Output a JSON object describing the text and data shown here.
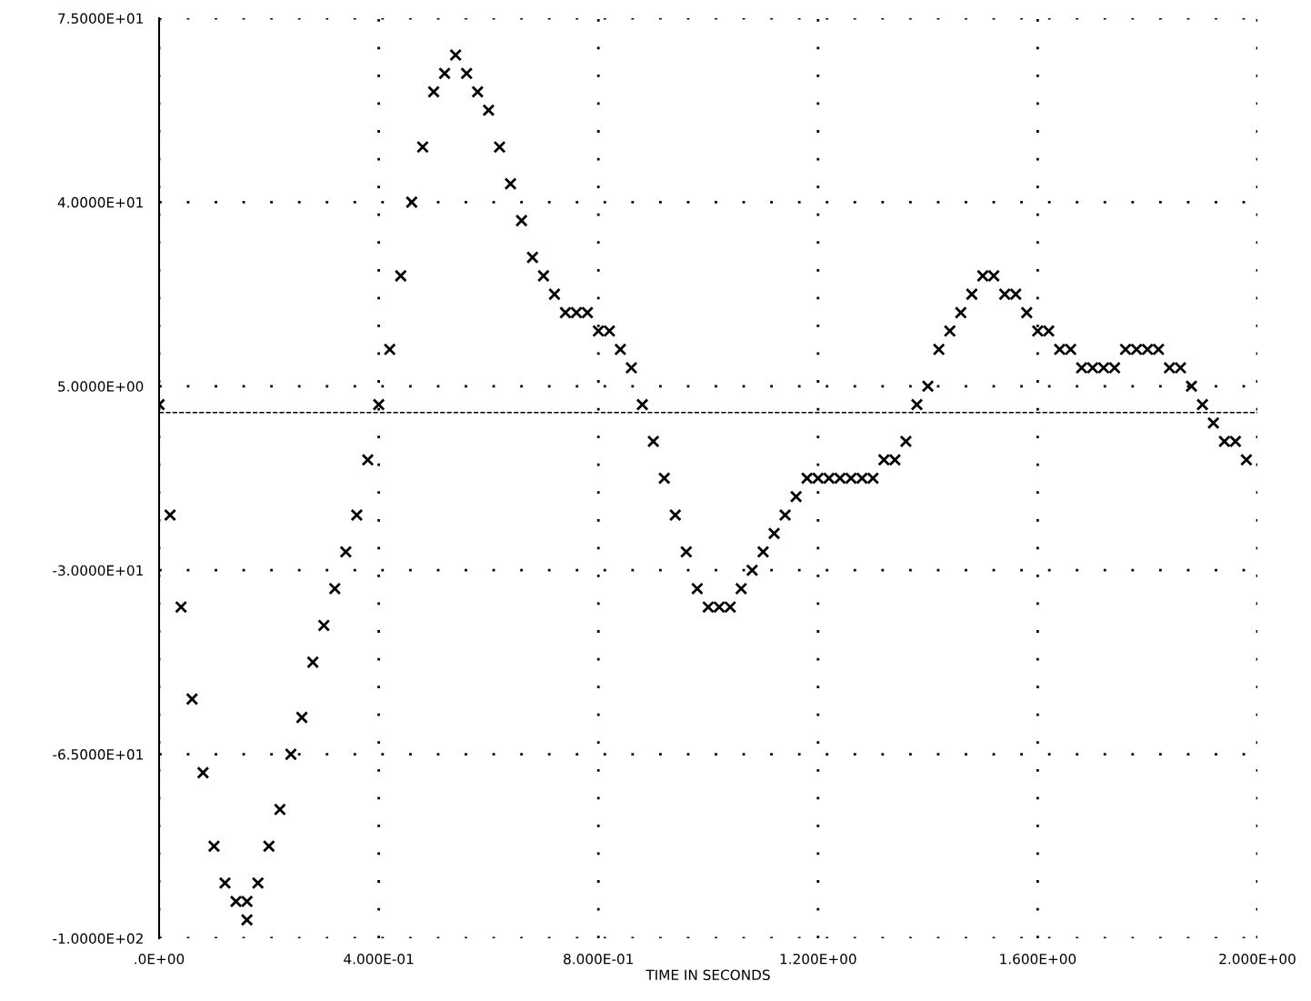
{
  "chart_data": {
    "type": "scatter",
    "xlabel": "TIME IN SECONDS",
    "x": [
      0,
      0.02,
      0.04,
      0.06,
      0.08,
      0.1,
      0.12,
      0.14,
      0.16,
      0.16,
      0.18,
      0.2,
      0.22,
      0.24,
      0.26,
      0.28,
      0.3,
      0.32,
      0.34,
      0.36,
      0.38,
      0.4,
      0.42,
      0.44,
      0.46,
      0.48,
      0.5,
      0.52,
      0.54,
      0.56,
      0.58,
      0.6,
      0.62,
      0.64,
      0.66,
      0.68,
      0.7,
      0.72,
      0.74,
      0.76,
      0.78,
      0.8,
      0.82,
      0.84,
      0.86,
      0.88,
      0.9,
      0.92,
      0.94,
      0.96,
      0.98,
      1.0,
      1.02,
      1.04,
      1.06,
      1.08,
      1.1,
      1.12,
      1.14,
      1.16,
      1.18,
      1.2,
      1.22,
      1.24,
      1.26,
      1.28,
      1.3,
      1.32,
      1.34,
      1.36,
      1.38,
      1.4,
      1.42,
      1.44,
      1.46,
      1.48,
      1.5,
      1.52,
      1.54,
      1.56,
      1.58,
      1.6,
      1.62,
      1.64,
      1.66,
      1.68,
      1.7,
      1.72,
      1.74,
      1.76,
      1.78,
      1.8,
      1.82,
      1.84,
      1.86,
      1.88,
      1.9,
      1.92,
      1.94,
      1.96,
      1.98
    ],
    "series": [
      {
        "color": "#000000",
        "values": [
          1.5,
          -19.5,
          -37,
          -54.5,
          -68.5,
          -82.5,
          -89.5,
          -93,
          -93,
          -96.5,
          -89.5,
          -82.5,
          -75.5,
          -65,
          -58,
          -47.5,
          -40.5,
          -33.5,
          -26.5,
          -19.5,
          -9,
          1.5,
          12,
          26,
          40,
          50.5,
          61,
          64.5,
          68,
          64.5,
          61,
          57.5,
          50.5,
          43.5,
          36.5,
          29.5,
          26,
          22.5,
          19,
          19,
          19,
          15.5,
          15.5,
          12,
          8.5,
          1.5,
          -5.5,
          -12.5,
          -19.5,
          -26.5,
          -33.5,
          -37,
          -37,
          -37,
          -33.5,
          -30,
          -26.5,
          -23,
          -19.5,
          -16,
          -12.5,
          -12.5,
          -12.5,
          -12.5,
          -12.5,
          -12.5,
          -12.5,
          -9,
          -9,
          -5.5,
          1.5,
          5,
          12,
          15.5,
          19,
          22.5,
          26,
          26,
          22.5,
          22.5,
          19,
          15.5,
          15.5,
          12,
          12,
          8.5,
          8.5,
          8.5,
          8.5,
          12,
          12,
          12,
          12,
          8.5,
          8.5,
          5,
          1.5,
          -2,
          -5.5,
          -5.5,
          -9
        ]
      }
    ],
    "xlim": [
      0,
      2
    ],
    "ylim": [
      -100,
      75
    ],
    "xticks": [
      {
        "value": 0,
        "label": ".0E+00"
      },
      {
        "value": 0.4,
        "label": "4.000E-01"
      },
      {
        "value": 0.8,
        "label": "8.000E-01"
      },
      {
        "value": 1.2,
        "label": "1.200E+00"
      },
      {
        "value": 1.6,
        "label": "1.600E+00"
      },
      {
        "value": 2,
        "label": "2.000E+00"
      }
    ],
    "yticks": [
      {
        "value": 75,
        "label": "7.5000E+01"
      },
      {
        "value": 40,
        "label": "4.0000E+01"
      },
      {
        "value": 5,
        "label": "5.0000E+00"
      },
      {
        "value": -30,
        "label": "-3.0000E+01"
      },
      {
        "value": -65,
        "label": "-6.5000E+01"
      },
      {
        "value": -100,
        "label": "-1.0000E+02"
      }
    ],
    "ref_lines": [
      {
        "axis": "y",
        "value": 0,
        "color": "#000000",
        "line_style": "dashed"
      }
    ],
    "grid": true,
    "marker": "cross",
    "line_style": "none",
    "legend": false
  }
}
